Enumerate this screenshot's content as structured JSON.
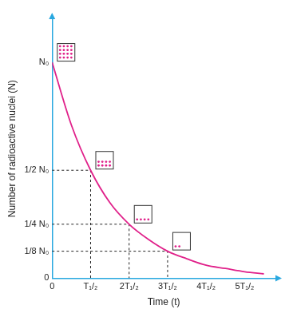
{
  "chart_data": {
    "type": "line",
    "x_label": "Time (t)",
    "y_label": "Number of radioactive nuclei (N)",
    "x": [
      0,
      0.5,
      1,
      1.5,
      2,
      2.5,
      3,
      3.5,
      4,
      4.5,
      5,
      5.5
    ],
    "values": [
      1,
      0.71,
      0.5,
      0.35,
      0.25,
      0.18,
      0.125,
      0.09,
      0.06,
      0.045,
      0.03,
      0.02
    ],
    "color": "#e0218a",
    "xlim": [
      0,
      5.8
    ],
    "xticks": [
      0,
      {
        "value": 1,
        "label": "T₁/₂"
      },
      {
        "value": 2,
        "label": "2T₁/₂"
      },
      {
        "value": 3,
        "label": "3T₁/₂"
      },
      {
        "value": 4,
        "label": "4T₁/₂"
      },
      {
        "value": 5,
        "label": "5T₁/₂"
      }
    ],
    "ylim": [
      0,
      1.2
    ],
    "yticks": [
      0,
      {
        "value": 0.125,
        "label": "1/8 N₀"
      },
      {
        "value": 0.25,
        "label": "1/4 N₀"
      },
      {
        "value": 0.5,
        "label": "1/2 N₀"
      },
      {
        "value": 1,
        "label": "N₀"
      }
    ],
    "grid": false,
    "dashed_lines": [
      {
        "x": 1,
        "y": 0.5
      },
      {
        "x": 2,
        "y": 0.25
      },
      {
        "x": 3,
        "y": 0.125
      }
    ],
    "nuclei_dots": {
      "x": [
        0,
        1,
        2,
        3
      ],
      "y": [
        1,
        0.5,
        0.25,
        0.125
      ],
      "counts": [
        16,
        8,
        4,
        2
      ]
    }
  }
}
